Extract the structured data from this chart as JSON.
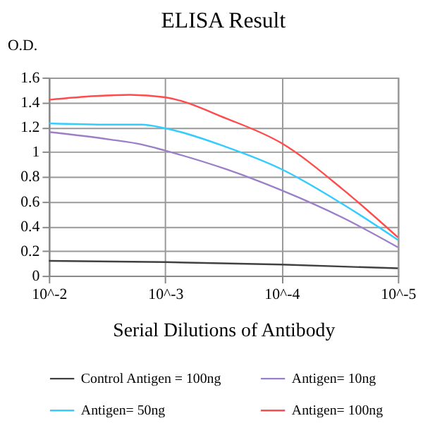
{
  "chart_data": {
    "type": "line",
    "title": "ELISA Result",
    "xlabel": "Serial Dilutions of Antibody",
    "ylabel": "O.D.",
    "log": "x",
    "xlim": [
      0.01,
      1e-05
    ],
    "xticks": [
      {
        "value": 0.01,
        "label": "10^-2"
      },
      {
        "value": 0.001,
        "label": "10^-3"
      },
      {
        "value": 0.0001,
        "label": "10^-4"
      },
      {
        "value": 1e-05,
        "label": "10^-5"
      }
    ],
    "ylim": [
      0,
      1.6
    ],
    "yticks": [
      0,
      0.2,
      0.4,
      0.6,
      0.8,
      1,
      1.2,
      1.4,
      1.6
    ],
    "grid": true,
    "legend": "bottom",
    "marker": "none",
    "line_style": "solid",
    "series": [
      {
        "name": "Control Antigen = 100ng",
        "color": "#404040",
        "x": [
          0.01,
          0.001,
          0.0001,
          1e-05
        ],
        "values": [
          0.12,
          0.11,
          0.09,
          0.06
        ]
      },
      {
        "name": "Antigen= 10ng",
        "color": "#9b7fc7",
        "x": [
          0.01,
          0.003,
          0.0016,
          0.001,
          0.0003,
          0.0001,
          3e-05,
          1e-05
        ],
        "values": [
          1.16,
          1.1,
          1.06,
          1.01,
          0.86,
          0.69,
          0.47,
          0.23
        ]
      },
      {
        "name": "Antigen= 50ng",
        "color": "#33ccff",
        "x": [
          0.01,
          0.003,
          0.0016,
          0.001,
          0.0003,
          0.0001,
          3e-05,
          1e-05
        ],
        "values": [
          1.23,
          1.22,
          1.22,
          1.19,
          1.04,
          0.86,
          0.58,
          0.29
        ]
      },
      {
        "name": "Antigen= 100ng",
        "color": "#ff4b4b",
        "x": [
          0.01,
          0.004,
          0.002,
          0.001,
          0.0003,
          0.0001,
          3e-05,
          1e-05
        ],
        "values": [
          1.42,
          1.45,
          1.46,
          1.44,
          1.27,
          1.07,
          0.7,
          0.31
        ]
      }
    ]
  }
}
